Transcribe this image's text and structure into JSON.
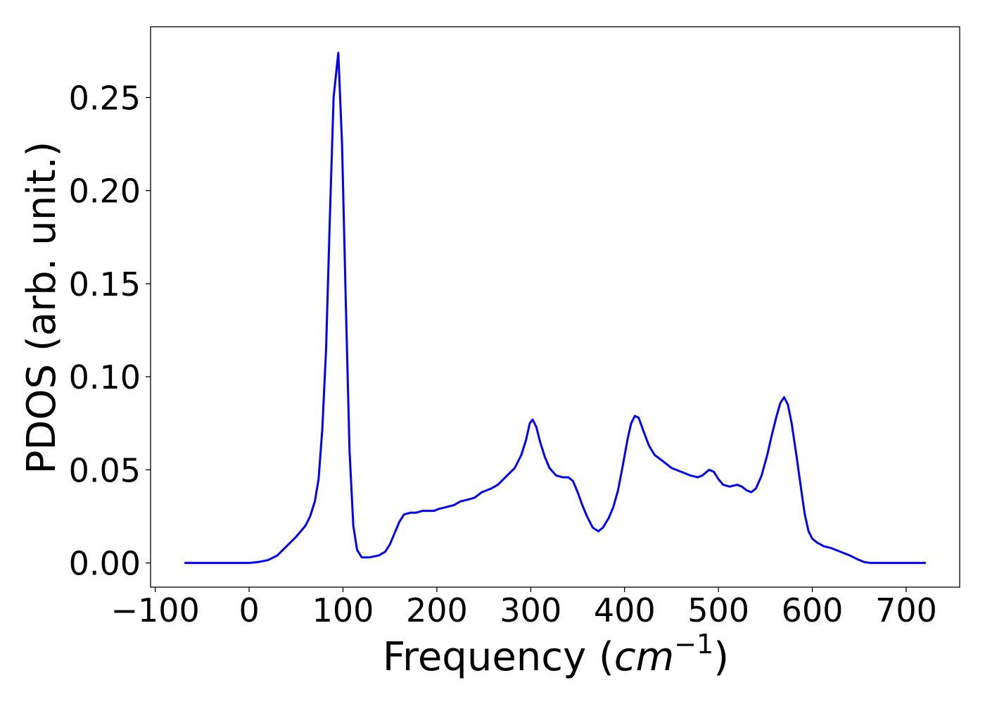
{
  "chart_data": {
    "type": "line",
    "title": "",
    "xlabel": "Frequency",
    "xlabel_unit": "cm",
    "xlabel_unit_exponent": "−1",
    "ylabel": "PDOS (arb. unit.)",
    "xlim": [
      -105,
      757
    ],
    "ylim": [
      -0.013,
      0.288
    ],
    "xticks": [
      -100,
      0,
      100,
      200,
      300,
      400,
      500,
      600,
      700
    ],
    "xtick_labels": [
      "−100",
      "0",
      "100",
      "200",
      "300",
      "400",
      "500",
      "600",
      "700"
    ],
    "yticks": [
      0.0,
      0.05,
      0.1,
      0.15,
      0.2,
      0.25
    ],
    "ytick_labels": [
      "0.00",
      "0.05",
      "0.10",
      "0.15",
      "0.20",
      "0.25"
    ],
    "grid": false,
    "legend": "none",
    "series": [
      {
        "color": "#0000ff",
        "points": [
          [
            -68,
            0.0
          ],
          [
            0,
            0.0
          ],
          [
            10,
            0.0005
          ],
          [
            20,
            0.0015
          ],
          [
            30,
            0.004
          ],
          [
            40,
            0.009
          ],
          [
            50,
            0.014
          ],
          [
            60,
            0.02
          ],
          [
            65,
            0.025
          ],
          [
            70,
            0.033
          ],
          [
            74,
            0.045
          ],
          [
            78,
            0.072
          ],
          [
            82,
            0.115
          ],
          [
            86,
            0.185
          ],
          [
            90,
            0.25
          ],
          [
            95,
            0.274
          ],
          [
            99,
            0.225
          ],
          [
            103,
            0.14
          ],
          [
            107,
            0.06
          ],
          [
            111,
            0.02
          ],
          [
            115,
            0.007
          ],
          [
            120,
            0.003
          ],
          [
            128,
            0.003
          ],
          [
            138,
            0.004
          ],
          [
            145,
            0.006
          ],
          [
            150,
            0.01
          ],
          [
            155,
            0.016
          ],
          [
            160,
            0.022
          ],
          [
            165,
            0.026
          ],
          [
            172,
            0.027
          ],
          [
            178,
            0.027
          ],
          [
            185,
            0.028
          ],
          [
            190,
            0.028
          ],
          [
            197,
            0.028
          ],
          [
            202,
            0.029
          ],
          [
            210,
            0.03
          ],
          [
            218,
            0.031
          ],
          [
            225,
            0.033
          ],
          [
            233,
            0.034
          ],
          [
            240,
            0.035
          ],
          [
            248,
            0.038
          ],
          [
            258,
            0.04
          ],
          [
            265,
            0.042
          ],
          [
            275,
            0.047
          ],
          [
            283,
            0.051
          ],
          [
            290,
            0.058
          ],
          [
            295,
            0.066
          ],
          [
            299,
            0.075
          ],
          [
            302,
            0.077
          ],
          [
            306,
            0.073
          ],
          [
            310,
            0.065
          ],
          [
            315,
            0.057
          ],
          [
            320,
            0.051
          ],
          [
            327,
            0.047
          ],
          [
            334,
            0.046
          ],
          [
            340,
            0.046
          ],
          [
            345,
            0.044
          ],
          [
            350,
            0.038
          ],
          [
            355,
            0.031
          ],
          [
            360,
            0.025
          ],
          [
            366,
            0.019
          ],
          [
            372,
            0.017
          ],
          [
            377,
            0.019
          ],
          [
            383,
            0.024
          ],
          [
            388,
            0.03
          ],
          [
            393,
            0.039
          ],
          [
            398,
            0.052
          ],
          [
            403,
            0.066
          ],
          [
            407,
            0.075
          ],
          [
            411,
            0.079
          ],
          [
            415,
            0.078
          ],
          [
            420,
            0.071
          ],
          [
            426,
            0.063
          ],
          [
            432,
            0.058
          ],
          [
            440,
            0.055
          ],
          [
            450,
            0.051
          ],
          [
            460,
            0.049
          ],
          [
            470,
            0.047
          ],
          [
            478,
            0.046
          ],
          [
            483,
            0.047
          ],
          [
            490,
            0.05
          ],
          [
            495,
            0.049
          ],
          [
            500,
            0.045
          ],
          [
            505,
            0.042
          ],
          [
            512,
            0.041
          ],
          [
            520,
            0.042
          ],
          [
            525,
            0.041
          ],
          [
            530,
            0.039
          ],
          [
            535,
            0.038
          ],
          [
            540,
            0.04
          ],
          [
            546,
            0.047
          ],
          [
            552,
            0.058
          ],
          [
            557,
            0.069
          ],
          [
            562,
            0.079
          ],
          [
            566,
            0.086
          ],
          [
            570,
            0.089
          ],
          [
            574,
            0.085
          ],
          [
            578,
            0.075
          ],
          [
            583,
            0.058
          ],
          [
            588,
            0.04
          ],
          [
            592,
            0.026
          ],
          [
            596,
            0.017
          ],
          [
            600,
            0.013
          ],
          [
            605,
            0.011
          ],
          [
            612,
            0.009
          ],
          [
            620,
            0.008
          ],
          [
            630,
            0.006
          ],
          [
            640,
            0.004
          ],
          [
            648,
            0.002
          ],
          [
            655,
            0.0005
          ],
          [
            662,
            0.0
          ],
          [
            720,
            0.0
          ]
        ]
      }
    ]
  }
}
